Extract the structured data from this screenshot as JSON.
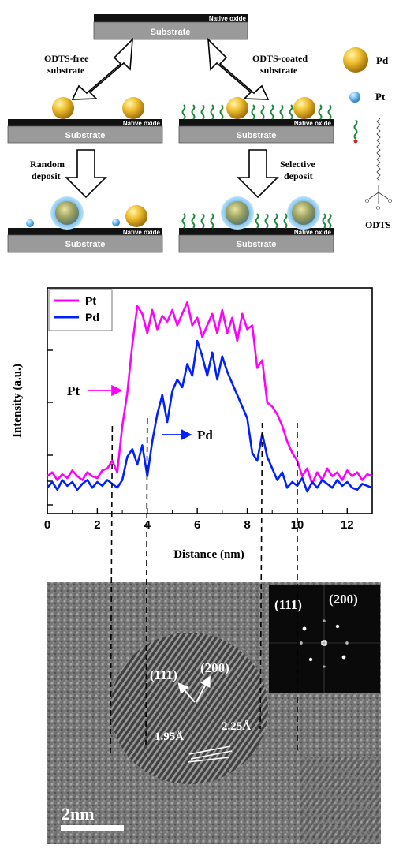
{
  "schematic": {
    "native_oxide": "Native oxide",
    "substrate": "Substrate",
    "odts_free": "ODTS-free",
    "odts_free_2": "substrate",
    "odts_coated": "ODTS-coated",
    "odts_coated_2": "substrate",
    "random": "Random",
    "random_2": "deposit",
    "selective": "Selective",
    "selective_2": "deposit",
    "legend_pd": "Pd",
    "legend_pt": "Pt",
    "odts": "ODTS",
    "colors": {
      "pd": "#e0b020",
      "pt": "#4aa3e6",
      "chain": "#1d8a3a",
      "substrate": "#9a9a9a",
      "oxide": "#111111"
    }
  },
  "chart_data": {
    "type": "line",
    "xlabel": "Distance (nm)",
    "ylabel": "Intensity (a.u.)",
    "xlim": [
      0,
      13
    ],
    "xticks": [
      0,
      2,
      4,
      6,
      8,
      10,
      12
    ],
    "series": [
      {
        "name": "Pt",
        "color": "#ff00ff",
        "x": [
          0,
          0.2,
          0.4,
          0.6,
          0.8,
          1.0,
          1.2,
          1.4,
          1.6,
          1.8,
          2.0,
          2.2,
          2.4,
          2.6,
          2.8,
          3.0,
          3.2,
          3.4,
          3.6,
          3.8,
          4.0,
          4.2,
          4.4,
          4.6,
          4.8,
          5.0,
          5.2,
          5.4,
          5.6,
          5.8,
          6.0,
          6.2,
          6.4,
          6.6,
          6.8,
          7.0,
          7.2,
          7.4,
          7.6,
          7.8,
          8.0,
          8.2,
          8.4,
          8.6,
          8.8,
          9.0,
          9.2,
          9.4,
          9.6,
          9.8,
          10.0,
          10.2,
          10.4,
          10.6,
          10.8,
          11.0,
          11.2,
          11.4,
          11.6,
          11.8,
          12.0,
          12.2,
          12.4,
          12.6,
          12.8,
          13.0
        ],
        "y": [
          0.12,
          0.14,
          0.1,
          0.13,
          0.11,
          0.15,
          0.12,
          0.1,
          0.14,
          0.12,
          0.11,
          0.15,
          0.16,
          0.2,
          0.14,
          0.38,
          0.55,
          0.8,
          1.0,
          0.96,
          0.86,
          0.98,
          0.88,
          0.95,
          0.92,
          0.98,
          0.9,
          0.96,
          1.02,
          0.9,
          0.94,
          0.84,
          0.9,
          0.96,
          0.86,
          0.98,
          0.86,
          0.94,
          0.82,
          0.96,
          0.88,
          0.9,
          0.68,
          0.72,
          0.5,
          0.48,
          0.44,
          0.38,
          0.3,
          0.24,
          0.2,
          0.12,
          0.16,
          0.08,
          0.14,
          0.1,
          0.16,
          0.12,
          0.14,
          0.1,
          0.15,
          0.12,
          0.14,
          0.1,
          0.13,
          0.12
        ]
      },
      {
        "name": "Pd",
        "color": "#0020ff",
        "x": [
          0,
          0.2,
          0.4,
          0.6,
          0.8,
          1.0,
          1.2,
          1.4,
          1.6,
          1.8,
          2.0,
          2.2,
          2.4,
          2.6,
          2.8,
          3.0,
          3.2,
          3.4,
          3.6,
          3.8,
          4.0,
          4.2,
          4.4,
          4.6,
          4.8,
          5.0,
          5.2,
          5.4,
          5.6,
          5.8,
          6.0,
          6.2,
          6.4,
          6.6,
          6.8,
          7.0,
          7.2,
          7.4,
          7.6,
          7.8,
          8.0,
          8.2,
          8.4,
          8.6,
          8.8,
          9.0,
          9.2,
          9.4,
          9.6,
          9.8,
          10.0,
          10.2,
          10.4,
          10.6,
          10.8,
          11.0,
          11.2,
          11.4,
          11.6,
          11.8,
          12.0,
          12.2,
          12.4,
          12.6,
          12.8,
          13.0
        ],
        "y": [
          0.06,
          0.09,
          0.05,
          0.1,
          0.07,
          0.09,
          0.05,
          0.08,
          0.1,
          0.06,
          0.09,
          0.07,
          0.1,
          0.08,
          0.06,
          0.1,
          0.22,
          0.26,
          0.18,
          0.28,
          0.12,
          0.3,
          0.44,
          0.54,
          0.4,
          0.56,
          0.62,
          0.58,
          0.7,
          0.64,
          0.82,
          0.74,
          0.64,
          0.76,
          0.62,
          0.74,
          0.66,
          0.6,
          0.54,
          0.48,
          0.42,
          0.24,
          0.2,
          0.34,
          0.22,
          0.16,
          0.1,
          0.14,
          0.06,
          0.09,
          0.07,
          0.11,
          0.04,
          0.09,
          0.06,
          0.1,
          0.08,
          0.06,
          0.1,
          0.07,
          0.09,
          0.06,
          0.05,
          0.08,
          0.07,
          0.06
        ]
      }
    ],
    "annotations": {
      "pt_arrow": "Pt",
      "pd_arrow": "Pd"
    },
    "dashed_x": [
      2.6,
      4.0,
      8.6,
      10.0
    ]
  },
  "tem": {
    "scale_bar": "2nm",
    "plane_111": "(111)",
    "plane_200": "(200)",
    "fft_111": "(111)",
    "fft_200": "(200)",
    "d1": "1.95Å",
    "d2": "2.25Å"
  }
}
